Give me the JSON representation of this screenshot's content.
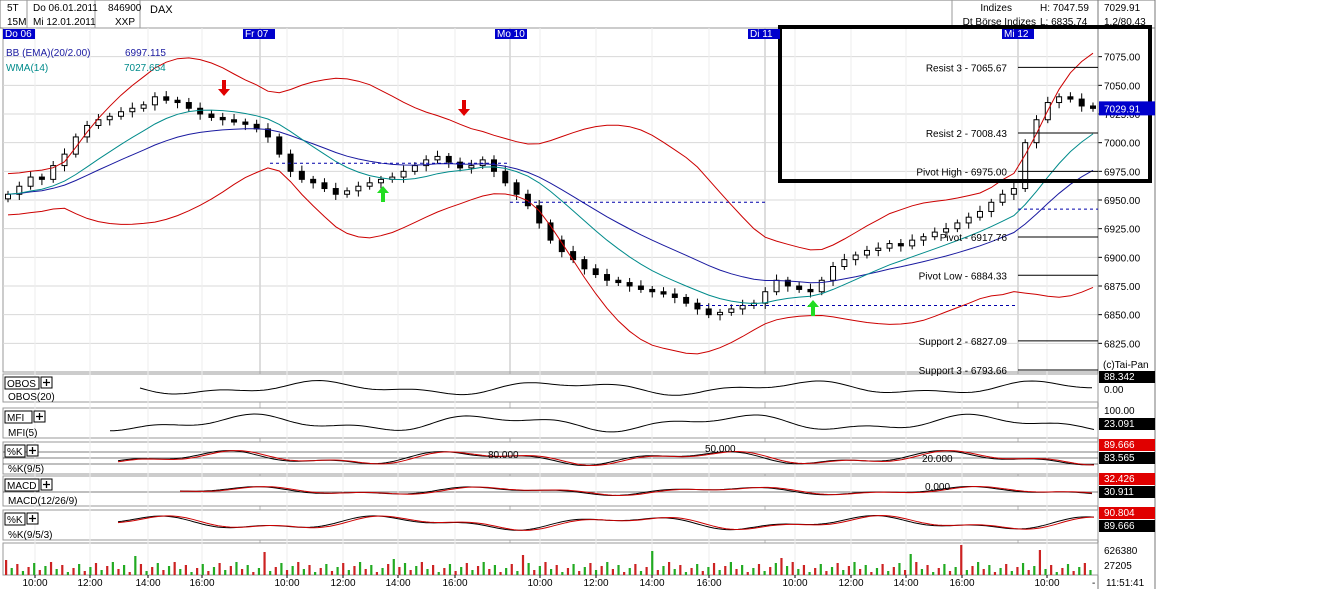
{
  "header": {
    "interval1": "5T",
    "date_from": "Do 06.01.2011",
    "wkn": "846900",
    "symbol": "DAX",
    "interval2": "15M",
    "date_to": "Mi 12.01.2011",
    "exchange": "XXP",
    "category": "Indizes",
    "source": "Dt Börse Indizes",
    "high": "H: 7047.59",
    "low": "L: 6835.74",
    "last": "7029.91",
    "change": "1.2/80.43"
  },
  "colors": {
    "bollinger": "#cc0000",
    "wma": "#008b8b",
    "ema_line": "#1a1aa0",
    "day_label_bg": "#0000cc",
    "arrow_down": "#e00000",
    "arrow_up": "#22dd22",
    "value_box_dark": "#000000",
    "value_box_red": "#e00000",
    "value_box_blue": "#0000cc"
  },
  "chart_data": {
    "type": "candlestick",
    "instrument": "DAX",
    "interval": "15M",
    "ylim": [
      6800,
      7100
    ],
    "y_ticks": [
      "7075.00",
      "7050.00",
      "7025.00",
      "7000.00",
      "6975.00",
      "6950.00",
      "6925.00",
      "6900.00",
      "6875.00",
      "6850.00",
      "6825.00"
    ],
    "day_labels": [
      "Do 06",
      "Fr 07",
      "Mo 10",
      "Di 11",
      "Mi 12"
    ],
    "x_ticks": [
      "10:00",
      "12:00",
      "14:00",
      "16:00",
      "10:00",
      "12:00",
      "14:00",
      "16:00",
      "10:00",
      "12:00",
      "14:00",
      "16:00",
      "10:00",
      "12:00",
      "14:00",
      "16:00",
      "10:00"
    ],
    "close": [
      6955,
      6962,
      6970,
      6968,
      6980,
      6990,
      7005,
      7015,
      7020,
      7023,
      7027,
      7030,
      7033,
      7040,
      7037,
      7035,
      7030,
      7025,
      7022,
      7020,
      7018,
      7016,
      7012,
      7005,
      6990,
      6975,
      6968,
      6965,
      6960,
      6955,
      6958,
      6962,
      6965,
      6968,
      6970,
      6975,
      6980,
      6985,
      6988,
      6983,
      6978,
      6980,
      6985,
      6975,
      6965,
      6955,
      6945,
      6930,
      6915,
      6905,
      6898,
      6890,
      6885,
      6880,
      6878,
      6875,
      6872,
      6870,
      6868,
      6865,
      6860,
      6855,
      6850,
      6852,
      6855,
      6858,
      6860,
      6870,
      6880,
      6875,
      6872,
      6870,
      6880,
      6892,
      6898,
      6902,
      6906,
      6908,
      6912,
      6910,
      6915,
      6918,
      6922,
      6925,
      6930,
      6935,
      6940,
      6948,
      6955,
      6960,
      7000,
      7020,
      7035,
      7040,
      7038,
      7032,
      7029.91
    ],
    "bb_label": "BB (EMA)(20/2.00)",
    "bb_value": "6997.115",
    "wma_label": "WMA(14)",
    "wma_value": "7027.654",
    "annotations": [
      {
        "label": "Resist 3 - 7065.67",
        "value": 7065.67
      },
      {
        "label": "Resist 2 - 7008.43",
        "value": 7008.43
      },
      {
        "label": "Pivot High - 6975.00",
        "value": 6975.0
      },
      {
        "label": "Pivot - 6917.76",
        "value": 6917.76
      },
      {
        "label": "Pivot Low - 6884.33",
        "value": 6884.33
      },
      {
        "label": "Support 2 - 6827.09",
        "value": 6827.09
      },
      {
        "label": "Support 3 - 6793.66",
        "value": 6793.66
      }
    ],
    "dashed_levels": [
      6982,
      6948,
      6858
    ],
    "copyright": "(c)Tai-Pan"
  },
  "indicators": [
    {
      "name": "OBOS",
      "label": "OBOS(20)",
      "values": [
        "88.342",
        "0.00"
      ]
    },
    {
      "name": "MFI",
      "label": "MFI(5)",
      "values": [
        "100.00",
        "23.091"
      ]
    },
    {
      "name": "%K",
      "label": "%K(9/5)",
      "values": [
        "89.666",
        "83.565"
      ],
      "levels": [
        "80.000",
        "50.000",
        "20.000"
      ]
    },
    {
      "name": "MACD",
      "label": "MACD(12/26/9)",
      "values": [
        "32.426",
        "30.911"
      ],
      "levels": [
        "0.000"
      ]
    },
    {
      "name": "%K",
      "label": "%K(9/5/3)",
      "values": [
        "90.804",
        "89.666"
      ]
    }
  ],
  "volume": {
    "values": [
      "626380",
      "27205"
    ]
  },
  "clock": "11:51:41"
}
